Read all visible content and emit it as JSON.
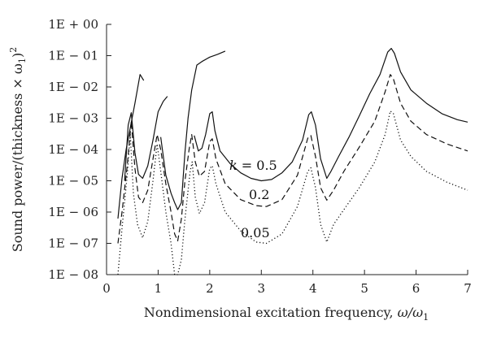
{
  "chart_data": {
    "type": "line",
    "title": "",
    "xlabel_text": "Nondimensional excitation frequency, ",
    "xlabel_math": "ω/ω",
    "xlabel_sub": "1",
    "ylabel_text": "Sound power/(thickness × ω",
    "ylabel_sub": "1",
    "ylabel_close": ")",
    "ylabel_sup": "2",
    "xlim": [
      0,
      7
    ],
    "ylim_log10": [
      -8,
      0
    ],
    "y_scale": "log",
    "grid": false,
    "legend": "none",
    "x_ticks": [
      0,
      1,
      2,
      3,
      4,
      5,
      6,
      7
    ],
    "x_tick_labels": [
      "0",
      "1",
      "2",
      "3",
      "4",
      "5",
      "6",
      "7"
    ],
    "y_ticks_log10": [
      0,
      -1,
      -2,
      -3,
      -4,
      -5,
      -6,
      -7,
      -8
    ],
    "y_tick_labels": [
      "1E + 00",
      "1E − 01",
      "1E − 02",
      "1E − 03",
      "1E − 04",
      "1E − 05",
      "1E − 06",
      "1E − 07",
      "1E − 08"
    ],
    "annotations": [
      {
        "k_symbol": "k",
        "text": " = 0.5",
        "series": 0
      },
      {
        "text": "0.2",
        "series": 1
      },
      {
        "text": "0.05",
        "series": 2
      }
    ],
    "series": [
      {
        "label": "k = 0.5",
        "style": "solid",
        "segments": [
          [
            [
              0.22,
              6.2e-07
            ],
            [
              0.3,
              1.2e-05
            ],
            [
              0.38,
              0.0001
            ],
            [
              0.45,
              0.0004
            ],
            [
              0.55,
              0.003
            ],
            [
              0.65,
              0.025
            ],
            [
              0.72,
              0.016
            ]
          ],
          [
            [
              0.35,
              1e-05
            ],
            [
              0.42,
              0.0006
            ],
            [
              0.48,
              0.0015
            ],
            [
              0.55,
              8e-05
            ],
            [
              0.62,
              1.6e-05
            ],
            [
              0.7,
              1.2e-05
            ],
            [
              0.8,
              3e-05
            ],
            [
              0.9,
              0.0002
            ],
            [
              1.0,
              0.0016
            ],
            [
              1.1,
              0.0035
            ],
            [
              1.18,
              0.005
            ]
          ],
          [
            [
              1.05,
              0.00025
            ],
            [
              1.15,
              1.5e-05
            ],
            [
              1.25,
              4e-06
            ],
            [
              1.32,
              2e-06
            ],
            [
              1.38,
              1.2e-06
            ],
            [
              1.45,
              2e-06
            ],
            [
              1.52,
              8e-05
            ],
            [
              1.58,
              0.001
            ],
            [
              1.65,
              0.008
            ],
            [
              1.75,
              0.05
            ],
            [
              1.85,
              0.065
            ],
            [
              2.0,
              0.09
            ],
            [
              2.15,
              0.11
            ],
            [
              2.3,
              0.14
            ]
          ],
          [
            [
              1.7,
              0.00028
            ],
            [
              1.78,
              9e-05
            ],
            [
              1.85,
              0.00011
            ],
            [
              1.92,
              0.0003
            ],
            [
              2.0,
              0.0014
            ],
            [
              2.05,
              0.0016
            ],
            [
              2.1,
              0.0004
            ],
            [
              2.2,
              9e-05
            ],
            [
              2.4,
              3.5e-05
            ],
            [
              2.6,
              1.8e-05
            ],
            [
              2.8,
              1.2e-05
            ],
            [
              3.0,
              1e-05
            ],
            [
              3.2,
              1.1e-05
            ],
            [
              3.4,
              1.8e-05
            ],
            [
              3.6,
              4e-05
            ],
            [
              3.8,
              0.0002
            ],
            [
              3.92,
              0.0013
            ],
            [
              3.97,
              0.0016
            ],
            [
              4.05,
              0.0006
            ],
            [
              4.15,
              5e-05
            ],
            [
              4.27,
              1.2e-05
            ],
            [
              4.35,
              2e-05
            ],
            [
              4.5,
              6e-05
            ],
            [
              4.7,
              0.00025
            ],
            [
              4.9,
              0.0012
            ],
            [
              5.1,
              0.006
            ],
            [
              5.3,
              0.025
            ],
            [
              5.45,
              0.13
            ],
            [
              5.52,
              0.17
            ],
            [
              5.58,
              0.12
            ],
            [
              5.7,
              0.03
            ],
            [
              5.9,
              0.008
            ],
            [
              6.2,
              0.003
            ],
            [
              6.5,
              0.0014
            ],
            [
              6.8,
              0.0009
            ],
            [
              7.0,
              0.00075
            ]
          ]
        ]
      },
      {
        "label": "0.2",
        "style": "dashed",
        "segments": [
          [
            [
              0.22,
              1e-07
            ],
            [
              0.3,
              1e-06
            ],
            [
              0.4,
              3e-05
            ],
            [
              0.48,
              0.0008
            ],
            [
              0.55,
              2.5e-05
            ],
            [
              0.62,
              3e-06
            ],
            [
              0.7,
              2e-06
            ],
            [
              0.8,
              5e-06
            ],
            [
              0.9,
              5e-05
            ],
            [
              0.98,
              0.0003
            ],
            [
              1.05,
              0.0001
            ],
            [
              1.15,
              8e-06
            ],
            [
              1.25,
              1e-06
            ],
            [
              1.32,
              2e-07
            ],
            [
              1.38,
              1.2e-07
            ],
            [
              1.45,
              6e-07
            ],
            [
              1.52,
              1e-05
            ],
            [
              1.6,
              0.0001
            ],
            [
              1.65,
              0.0003
            ],
            [
              1.72,
              4e-05
            ],
            [
              1.8,
              1.4e-05
            ],
            [
              1.9,
              2e-05
            ],
            [
              2.0,
              0.00018
            ],
            [
              2.05,
              0.00022
            ],
            [
              2.12,
              5e-05
            ],
            [
              2.3,
              8e-06
            ],
            [
              2.6,
              2.5e-06
            ],
            [
              2.9,
              1.6e-06
            ],
            [
              3.1,
              1.5e-06
            ],
            [
              3.4,
              2.5e-06
            ],
            [
              3.7,
              1.5e-05
            ],
            [
              3.9,
              0.00023
            ],
            [
              3.96,
              0.00028
            ],
            [
              4.05,
              6e-05
            ],
            [
              4.15,
              6e-06
            ],
            [
              4.27,
              2.4e-06
            ],
            [
              4.4,
              5e-06
            ],
            [
              4.6,
              2e-05
            ],
            [
              4.9,
              0.00012
            ],
            [
              5.2,
              0.0008
            ],
            [
              5.4,
              0.007
            ],
            [
              5.5,
              0.025
            ],
            [
              5.56,
              0.018
            ],
            [
              5.7,
              0.003
            ],
            [
              5.9,
              0.0008
            ],
            [
              6.2,
              0.0003
            ],
            [
              6.6,
              0.00015
            ],
            [
              7.0,
              9e-05
            ]
          ]
        ]
      },
      {
        "label": "0.05",
        "style": "dotted",
        "segments": [
          [
            [
              0.22,
              1e-08
            ],
            [
              0.3,
              3e-07
            ],
            [
              0.4,
              1.5e-05
            ],
            [
              0.46,
              0.0003
            ],
            [
              0.52,
              4e-06
            ],
            [
              0.6,
              4e-07
            ],
            [
              0.7,
              1.5e-07
            ],
            [
              0.8,
              5e-07
            ],
            [
              0.9,
              1e-05
            ],
            [
              0.98,
              0.00015
            ],
            [
              1.05,
              2e-05
            ],
            [
              1.15,
              1e-06
            ],
            [
              1.25,
              1e-07
            ],
            [
              1.32,
              1e-08
            ],
            [
              1.38,
              5e-09
            ],
            [
              1.45,
              3e-08
            ],
            [
              1.52,
              6e-07
            ],
            [
              1.62,
              2e-05
            ],
            [
              1.66,
              4e-05
            ],
            [
              1.72,
              3e-06
            ],
            [
              1.8,
              9e-07
            ],
            [
              1.9,
              2e-06
            ],
            [
              2.0,
              2.5e-05
            ],
            [
              2.05,
              3e-05
            ],
            [
              2.12,
              8e-06
            ],
            [
              2.3,
              1e-06
            ],
            [
              2.6,
              2.5e-07
            ],
            [
              2.9,
              1.1e-07
            ],
            [
              3.1,
              1e-07
            ],
            [
              3.4,
              2e-07
            ],
            [
              3.7,
              1.5e-06
            ],
            [
              3.9,
              2e-05
            ],
            [
              3.96,
              2.6e-05
            ],
            [
              4.05,
              6e-06
            ],
            [
              4.15,
              4e-07
            ],
            [
              4.27,
              1.1e-07
            ],
            [
              4.4,
              4e-07
            ],
            [
              4.6,
              1.2e-06
            ],
            [
              4.9,
              6e-06
            ],
            [
              5.2,
              4e-05
            ],
            [
              5.4,
              0.0003
            ],
            [
              5.5,
              0.0017
            ],
            [
              5.56,
              0.0014
            ],
            [
              5.7,
              0.0002
            ],
            [
              5.9,
              6e-05
            ],
            [
              6.2,
              2e-05
            ],
            [
              6.6,
              9e-06
            ],
            [
              7.0,
              5e-06
            ]
          ]
        ]
      }
    ]
  }
}
